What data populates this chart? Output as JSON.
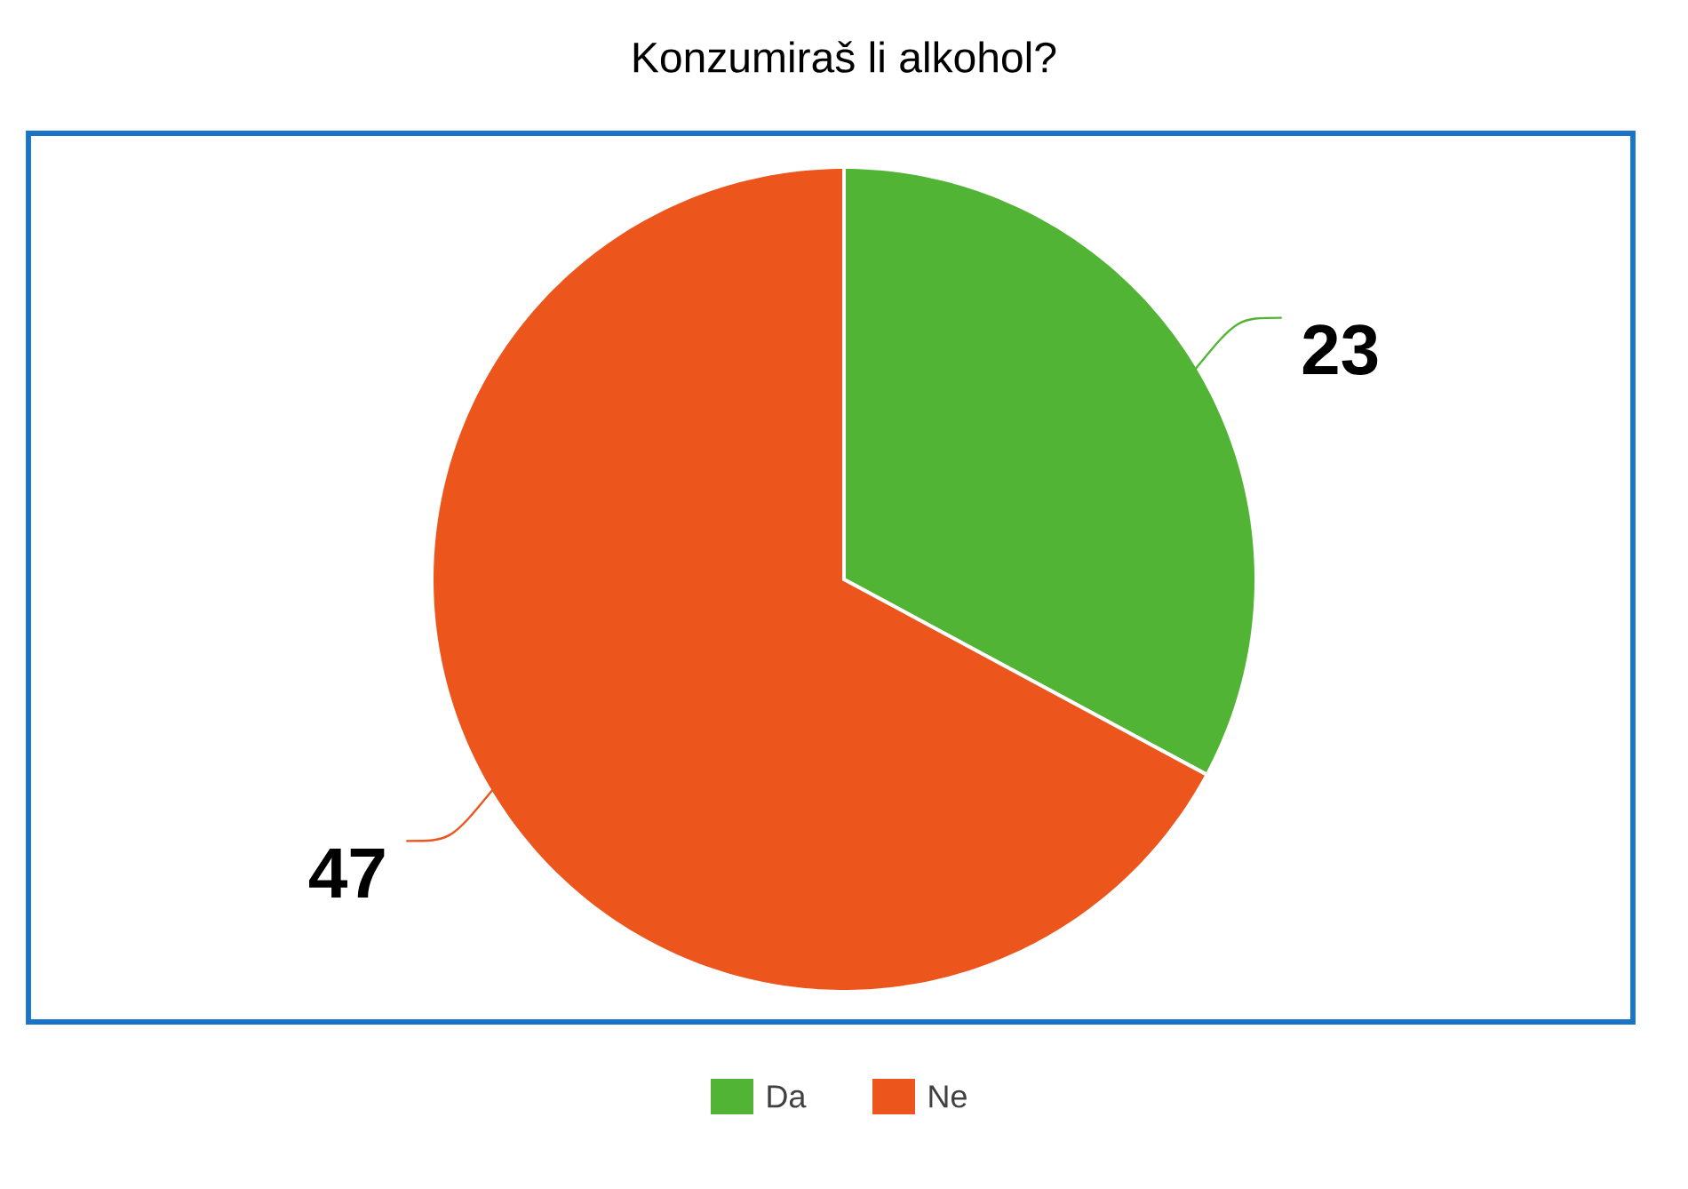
{
  "chart_data": {
    "type": "pie",
    "title": "Konzumiraš li alkohol?",
    "categories": [
      "Da",
      "Ne"
    ],
    "values": [
      23,
      47
    ],
    "colors": [
      "#52b435",
      "#ec561d"
    ],
    "data_labels": true,
    "legend": "bottom"
  }
}
